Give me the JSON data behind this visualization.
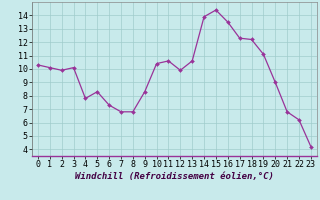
{
  "x": [
    0,
    1,
    2,
    3,
    4,
    5,
    6,
    7,
    8,
    9,
    10,
    11,
    12,
    13,
    14,
    15,
    16,
    17,
    18,
    19,
    20,
    21,
    22,
    23
  ],
  "y": [
    10.3,
    10.1,
    9.9,
    10.1,
    7.8,
    8.3,
    7.3,
    6.8,
    6.8,
    8.3,
    10.4,
    10.6,
    9.9,
    10.6,
    13.9,
    14.4,
    13.5,
    12.3,
    12.2,
    11.1,
    9.0,
    6.8,
    6.2,
    4.2
  ],
  "line_color": "#993399",
  "marker_color": "#993399",
  "bg_color": "#c8eaeb",
  "grid_color": "#a0cccc",
  "xlabel": "Windchill (Refroidissement éolien,°C)",
  "ylim": [
    3.5,
    15.0
  ],
  "yticks": [
    4,
    5,
    6,
    7,
    8,
    9,
    10,
    11,
    12,
    13,
    14
  ],
  "xlim": [
    -0.5,
    23.5
  ],
  "xticks": [
    0,
    1,
    2,
    3,
    4,
    5,
    6,
    7,
    8,
    9,
    10,
    11,
    12,
    13,
    14,
    15,
    16,
    17,
    18,
    19,
    20,
    21,
    22,
    23
  ],
  "tick_fontsize": 6.0,
  "xlabel_fontsize": 6.5
}
